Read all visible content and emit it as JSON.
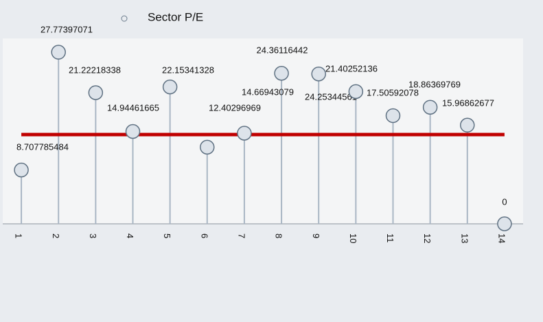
{
  "chart_data": {
    "type": "lollipop",
    "categories": [
      "1",
      "2",
      "3",
      "4",
      "5",
      "6",
      "7",
      "8",
      "9",
      "10",
      "11",
      "12",
      "13",
      "14"
    ],
    "series": [
      {
        "name": "Sector P/E",
        "color": "#dde3ea",
        "values": [
          8.707785484,
          27.77397071,
          21.22218338,
          14.94461665,
          22.15341328,
          12.40296969,
          14.66943079,
          24.36116442,
          24.25344561,
          21.40252136,
          17.50592078,
          18.86369769,
          15.96862677,
          0
        ]
      }
    ],
    "reference_line": {
      "value": 14.44,
      "color": "#c00000"
    },
    "ylim": [
      0,
      30
    ]
  }
}
